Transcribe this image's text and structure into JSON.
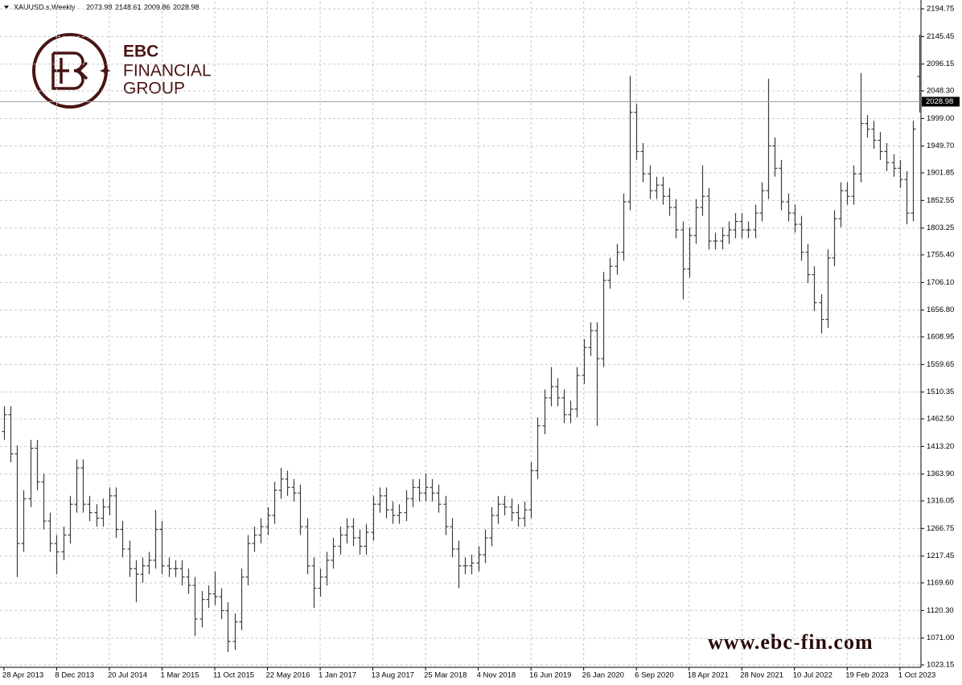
{
  "chart_data": {
    "type": "ohlc",
    "title": "XAUUSD.s,Weekly",
    "color": "#3c3c3c",
    "open": [
      1440,
      1470,
      1400,
      1240,
      1320,
      1410,
      1350,
      1280,
      1240,
      1225,
      1255,
      1310,
      1375,
      1310,
      1295,
      1285,
      1305,
      1325,
      1265,
      1230,
      1195,
      1185,
      1200,
      1210,
      1265,
      1200,
      1195,
      1195,
      1180,
      1165,
      1105,
      1140,
      1150,
      1145,
      1120,
      1065,
      1100,
      1180,
      1240,
      1255,
      1270,
      1290,
      1335,
      1355,
      1340,
      1330,
      1270,
      1200,
      1160,
      1180,
      1210,
      1235,
      1255,
      1270,
      1250,
      1235,
      1260,
      1310,
      1325,
      1300,
      1290,
      1295,
      1320,
      1340,
      1330,
      1340,
      1330,
      1310,
      1270,
      1230,
      1200,
      1200,
      1205,
      1220,
      1250,
      1290,
      1310,
      1305,
      1295,
      1285,
      1300,
      1370,
      1450,
      1500,
      1520,
      1500,
      1470,
      1480,
      1540,
      1590,
      1620,
      1570,
      1710,
      1735,
      1760,
      1850,
      2010,
      1940,
      1900,
      1870,
      1880,
      1860,
      1840,
      1800,
      1730,
      1790,
      1840,
      1860,
      1780,
      1780,
      1790,
      1800,
      1815,
      1800,
      1800,
      1830,
      1870,
      1950,
      1910,
      1850,
      1830,
      1810,
      1760,
      1720,
      1670,
      1640,
      1750,
      1820,
      1870,
      1860,
      1900,
      1990,
      1980,
      1960,
      1940,
      1920,
      1910,
      1890,
      1830,
      2073.98
    ],
    "high": [
      1485,
      1485,
      1415,
      1335,
      1425,
      1425,
      1365,
      1295,
      1255,
      1270,
      1325,
      1390,
      1390,
      1325,
      1310,
      1320,
      1340,
      1340,
      1280,
      1245,
      1210,
      1215,
      1225,
      1300,
      1280,
      1215,
      1210,
      1210,
      1195,
      1180,
      1155,
      1165,
      1190,
      1160,
      1135,
      1115,
      1195,
      1255,
      1270,
      1285,
      1305,
      1350,
      1375,
      1370,
      1355,
      1345,
      1285,
      1215,
      1195,
      1225,
      1250,
      1270,
      1285,
      1285,
      1265,
      1275,
      1325,
      1340,
      1340,
      1315,
      1310,
      1335,
      1355,
      1355,
      1365,
      1355,
      1345,
      1325,
      1285,
      1245,
      1215,
      1220,
      1235,
      1265,
      1305,
      1325,
      1325,
      1320,
      1310,
      1315,
      1385,
      1465,
      1515,
      1555,
      1535,
      1515,
      1495,
      1555,
      1605,
      1635,
      1635,
      1725,
      1750,
      1775,
      1865,
      2075,
      2025,
      1955,
      1915,
      1895,
      1895,
      1875,
      1855,
      1815,
      1805,
      1855,
      1915,
      1875,
      1795,
      1805,
      1815,
      1830,
      1830,
      1815,
      1845,
      1885,
      2070,
      1965,
      1925,
      1865,
      1845,
      1825,
      1775,
      1735,
      1685,
      1765,
      1835,
      1885,
      1885,
      1915,
      2080,
      2005,
      1995,
      1975,
      1955,
      1935,
      1925,
      1905,
      1995,
      2148.61
    ],
    "low": [
      1425,
      1385,
      1180,
      1225,
      1305,
      1335,
      1265,
      1225,
      1185,
      1210,
      1240,
      1295,
      1295,
      1280,
      1270,
      1270,
      1290,
      1250,
      1215,
      1180,
      1135,
      1170,
      1185,
      1195,
      1185,
      1180,
      1180,
      1165,
      1150,
      1075,
      1090,
      1125,
      1130,
      1105,
      1046,
      1050,
      1085,
      1165,
      1225,
      1240,
      1255,
      1275,
      1320,
      1325,
      1315,
      1255,
      1185,
      1125,
      1145,
      1165,
      1195,
      1220,
      1240,
      1235,
      1220,
      1220,
      1245,
      1295,
      1285,
      1275,
      1275,
      1280,
      1305,
      1315,
      1315,
      1315,
      1295,
      1255,
      1215,
      1160,
      1185,
      1185,
      1190,
      1205,
      1235,
      1275,
      1290,
      1280,
      1270,
      1270,
      1285,
      1355,
      1435,
      1485,
      1485,
      1455,
      1455,
      1465,
      1525,
      1575,
      1450,
      1555,
      1695,
      1720,
      1745,
      1835,
      1925,
      1885,
      1855,
      1855,
      1845,
      1825,
      1785,
      1676,
      1715,
      1775,
      1825,
      1765,
      1765,
      1765,
      1775,
      1785,
      1785,
      1785,
      1785,
      1815,
      1855,
      1895,
      1835,
      1815,
      1795,
      1745,
      1705,
      1655,
      1615,
      1625,
      1735,
      1805,
      1845,
      1845,
      1885,
      1965,
      1945,
      1925,
      1905,
      1895,
      1875,
      1810,
      1815,
      2009.86
    ],
    "close": [
      1470,
      1400,
      1240,
      1320,
      1410,
      1350,
      1280,
      1240,
      1225,
      1255,
      1310,
      1375,
      1310,
      1295,
      1285,
      1305,
      1325,
      1265,
      1230,
      1195,
      1185,
      1200,
      1210,
      1265,
      1200,
      1195,
      1195,
      1180,
      1165,
      1105,
      1140,
      1150,
      1145,
      1120,
      1065,
      1100,
      1180,
      1240,
      1255,
      1270,
      1290,
      1335,
      1355,
      1340,
      1330,
      1270,
      1200,
      1160,
      1180,
      1210,
      1235,
      1255,
      1270,
      1250,
      1235,
      1260,
      1310,
      1325,
      1300,
      1290,
      1295,
      1320,
      1340,
      1330,
      1340,
      1330,
      1310,
      1270,
      1230,
      1200,
      1200,
      1205,
      1220,
      1250,
      1290,
      1310,
      1305,
      1295,
      1285,
      1300,
      1370,
      1450,
      1500,
      1520,
      1500,
      1470,
      1480,
      1540,
      1590,
      1620,
      1570,
      1710,
      1735,
      1760,
      1850,
      2010,
      1940,
      1900,
      1870,
      1880,
      1860,
      1840,
      1800,
      1730,
      1790,
      1840,
      1860,
      1780,
      1780,
      1790,
      1800,
      1815,
      1800,
      1800,
      1830,
      1870,
      1950,
      1910,
      1850,
      1830,
      1810,
      1760,
      1720,
      1670,
      1640,
      1750,
      1820,
      1870,
      1860,
      1900,
      1990,
      1980,
      1960,
      1940,
      1920,
      1910,
      1890,
      1830,
      1980,
      2028.98
    ],
    "xlim": [
      -0.6,
      139.2
    ],
    "xticks": [
      {
        "value": 0,
        "label": "28 Apr 2013"
      },
      {
        "value": 8,
        "label": "8 Dec 2013"
      },
      {
        "value": 16,
        "label": "20 Jul 2014"
      },
      {
        "value": 24,
        "label": "1 Mar 2015"
      },
      {
        "value": 32,
        "label": "11 Oct 2015"
      },
      {
        "value": 40,
        "label": "22 May 2016"
      },
      {
        "value": 48,
        "label": "1 Jan 2017"
      },
      {
        "value": 56,
        "label": "13 Aug 2017"
      },
      {
        "value": 64,
        "label": "25 Mar 2018"
      },
      {
        "value": 72,
        "label": "4 Nov 2018"
      },
      {
        "value": 80,
        "label": "16 Jun 2019"
      },
      {
        "value": 88,
        "label": "26 Jan 2020"
      },
      {
        "value": 96,
        "label": "6 Sep 2020"
      },
      {
        "value": 104,
        "label": "18 Apr 2021"
      },
      {
        "value": 112,
        "label": "28 Nov 2021"
      },
      {
        "value": 120,
        "label": "10 Jul 2022"
      },
      {
        "value": 128,
        "label": "19 Feb 2023"
      },
      {
        "value": 136,
        "label": "1 Oct 2023"
      }
    ],
    "ylim": [
      1018.8,
      2207.7
    ],
    "yticks": [
      2194.75,
      2145.45,
      2096.15,
      {
        "value": 2048.3,
        "label": "2048.30"
      },
      {
        "value": 1999,
        "label": "1999.00"
      },
      {
        "value": 1949.7,
        "label": "1949.70"
      },
      1901.85,
      1852.55,
      1803.25,
      {
        "value": 1755.4,
        "label": "1755.40"
      },
      {
        "value": 1706.1,
        "label": "1706.10"
      },
      {
        "value": 1656.8,
        "label": "1656.80"
      },
      1608.95,
      1559.65,
      1510.35,
      {
        "value": 1462.5,
        "label": "1462.50"
      },
      {
        "value": 1413.2,
        "label": "1413.20"
      },
      {
        "value": 1363.9,
        "label": "1363.90"
      },
      1316.05,
      1266.75,
      1217.45,
      {
        "value": 1169.6,
        "label": "1169.60"
      },
      {
        "value": 1120.3,
        "label": "1120.30"
      },
      {
        "value": 1071,
        "label": "1071.00"
      },
      1023.15
    ],
    "grid": true
  },
  "watermark": {
    "brand": "EBC",
    "line1": "FINANCIAL",
    "line2": "GROUP",
    "url": "www.ebc-fin.com"
  }
}
